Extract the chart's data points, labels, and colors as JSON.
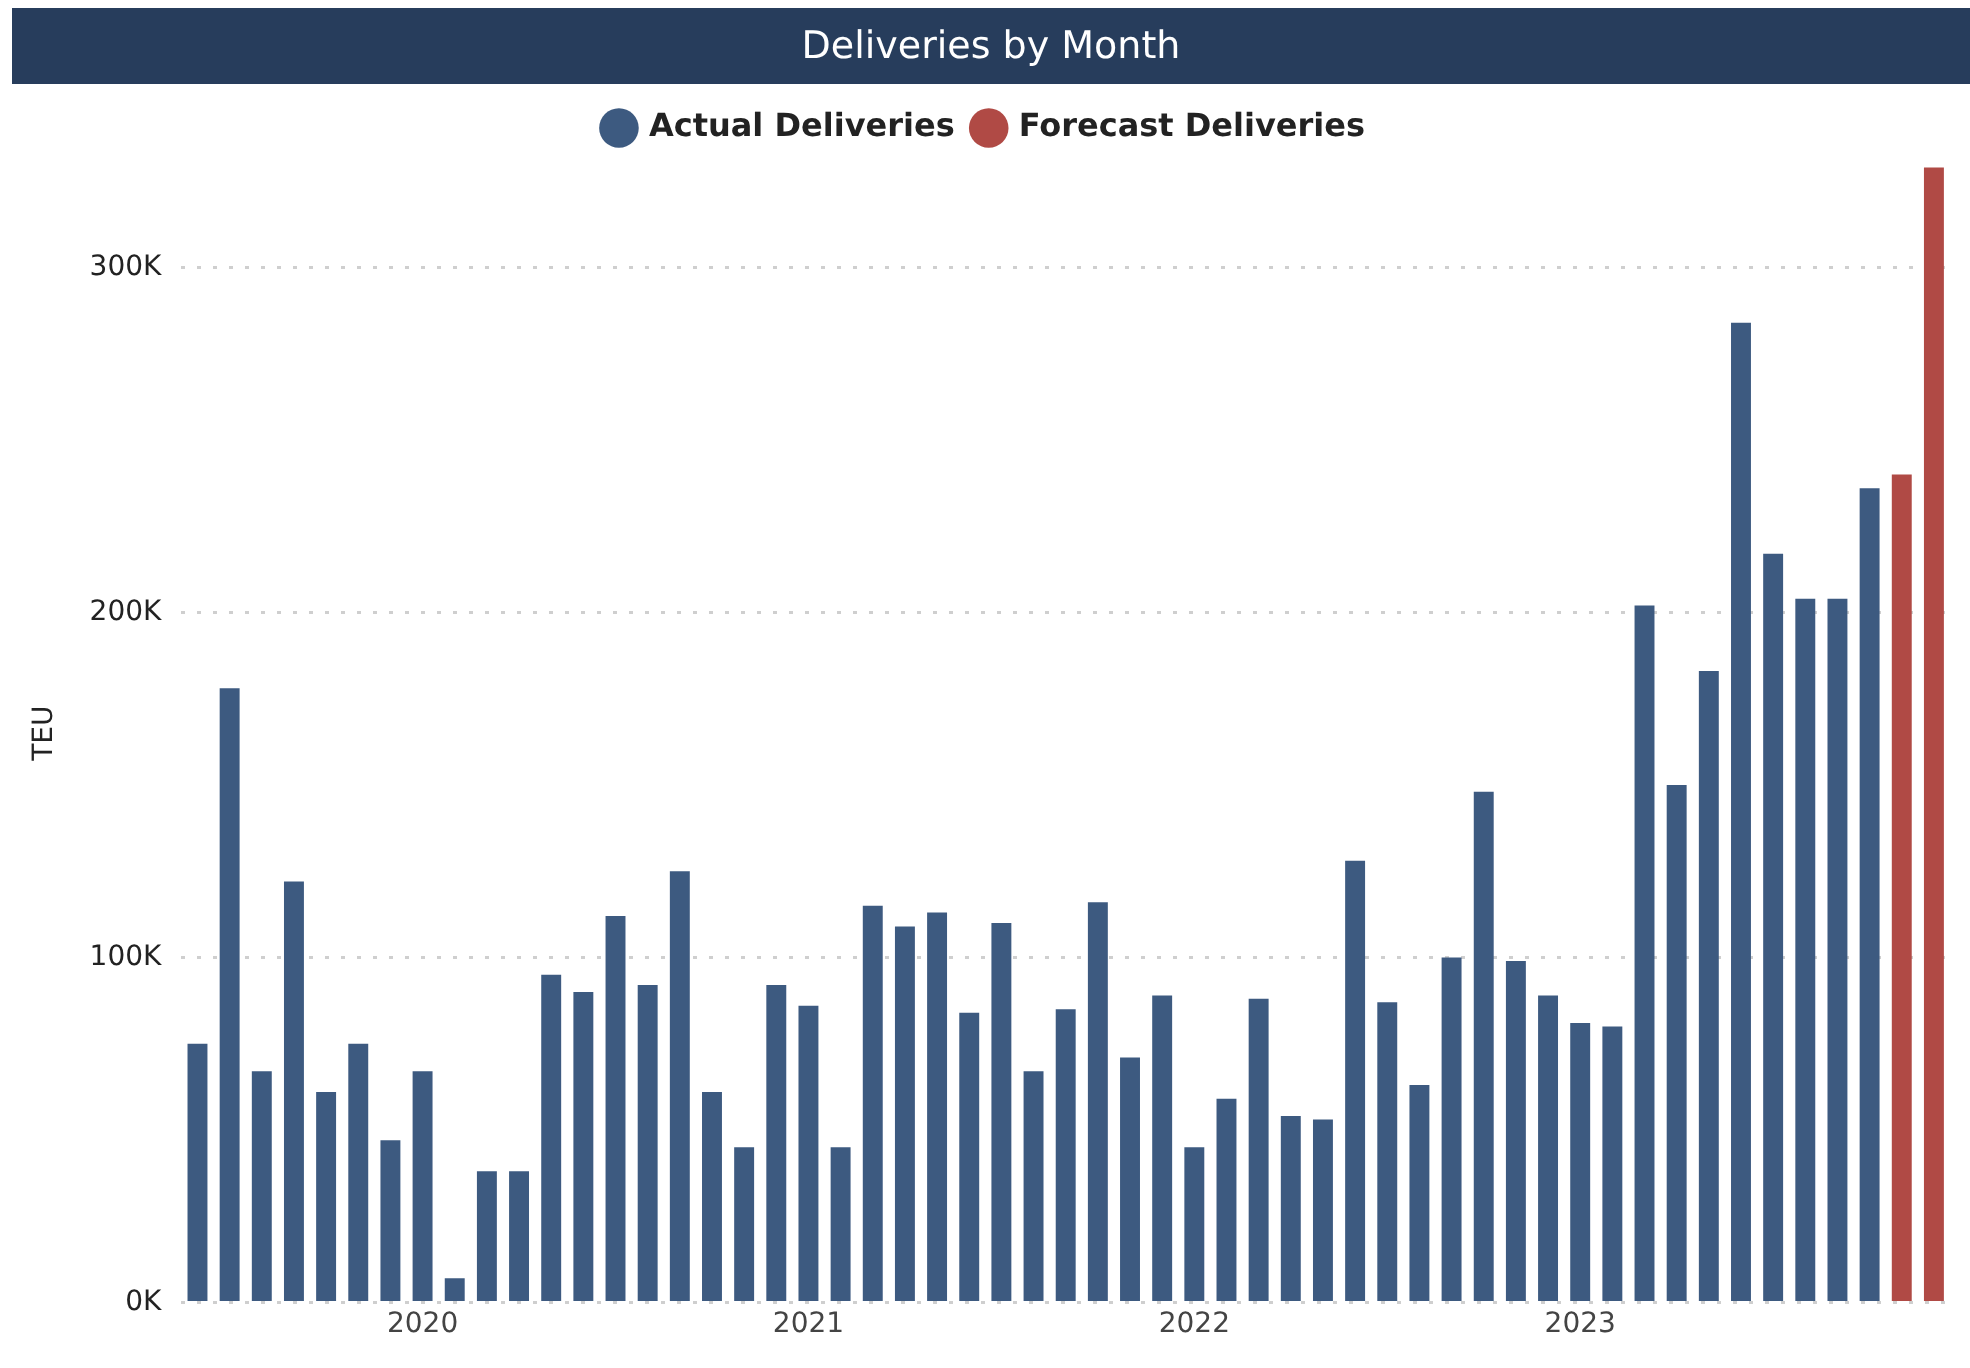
{
  "chart_data": {
    "type": "bar",
    "title": "Deliveries by Month",
    "ylabel": "TEU",
    "categories": [
      null,
      null,
      null,
      null,
      null,
      null,
      null,
      "2020",
      null,
      null,
      null,
      null,
      null,
      null,
      null,
      null,
      null,
      null,
      null,
      "2021",
      null,
      null,
      null,
      null,
      null,
      null,
      null,
      null,
      null,
      null,
      null,
      "2022",
      null,
      null,
      null,
      null,
      null,
      null,
      null,
      null,
      null,
      null,
      null,
      "2023",
      null,
      null,
      null,
      null,
      null,
      null,
      null,
      null,
      null,
      null,
      null
    ],
    "series": [
      {
        "name": "Actual Deliveries",
        "color": "#3d5a80",
        "values": [
          75000,
          178000,
          67000,
          122000,
          61000,
          75000,
          47000,
          67000,
          7000,
          38000,
          38000,
          95000,
          90000,
          112000,
          92000,
          125000,
          61000,
          45000,
          92000,
          86000,
          45000,
          115000,
          109000,
          113000,
          84000,
          110000,
          67000,
          85000,
          116000,
          71000,
          89000,
          45000,
          59000,
          88000,
          54000,
          53000,
          128000,
          87000,
          63000,
          100000,
          148000,
          99000,
          89000,
          81000,
          80000,
          202000,
          150000,
          183000,
          284000,
          217000,
          204000,
          204000,
          236000,
          null,
          null
        ]
      },
      {
        "name": "Forecast Deliveries",
        "color": "#b04a45",
        "values": [
          null,
          null,
          null,
          null,
          null,
          null,
          null,
          null,
          null,
          null,
          null,
          null,
          null,
          null,
          null,
          null,
          null,
          null,
          null,
          null,
          null,
          null,
          null,
          null,
          null,
          null,
          null,
          null,
          null,
          null,
          null,
          null,
          null,
          null,
          null,
          null,
          null,
          null,
          null,
          null,
          null,
          null,
          null,
          null,
          null,
          null,
          null,
          null,
          null,
          null,
          null,
          null,
          null,
          240000,
          329000
        ]
      }
    ],
    "ylim": [
      0,
      330000
    ],
    "yticks": [
      {
        "value": 0,
        "label": "0K"
      },
      {
        "value": 100000,
        "label": "100K"
      },
      {
        "value": 200000,
        "label": "200K"
      },
      {
        "value": 300000,
        "label": "300K"
      }
    ],
    "grid": "y",
    "legend": "top"
  }
}
